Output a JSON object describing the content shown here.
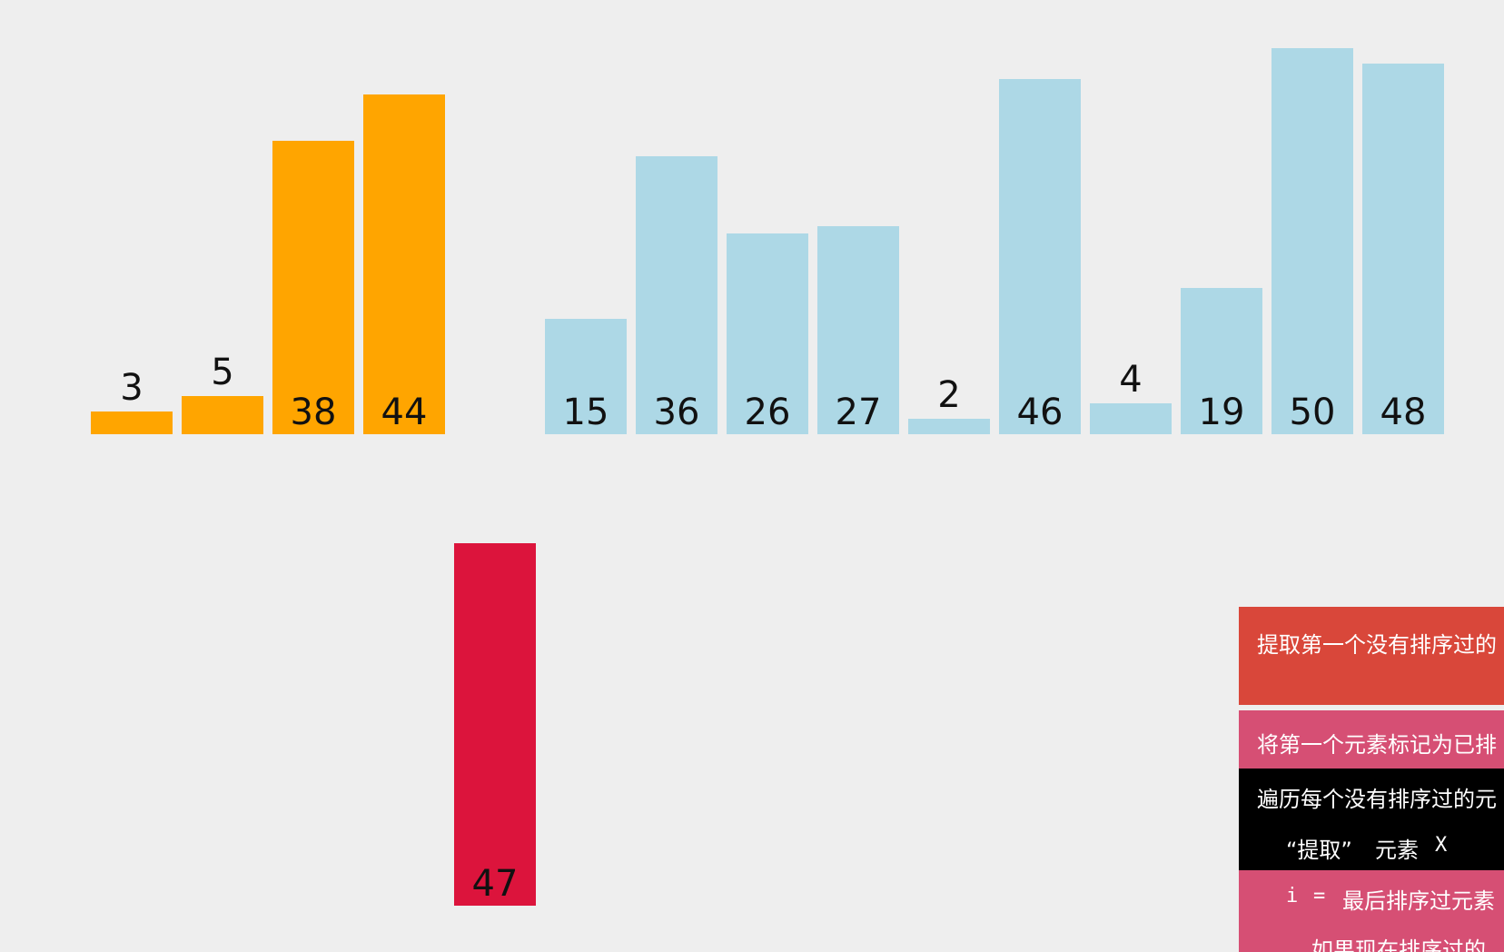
{
  "colors": {
    "background": "#eeeeee",
    "sorted": "#ffa500",
    "unsorted": "#add8e6",
    "current": "#dc143c"
  },
  "visualization": {
    "sorted_bars": [
      3,
      5,
      38,
      44
    ],
    "unsorted_bars": [
      15,
      36,
      26,
      27,
      2,
      46,
      4,
      19,
      50,
      48
    ],
    "extracted_bar": 47
  },
  "code_panel": {
    "line1": "提取第一个没有排序过的",
    "line2": "将第一个元素标记为已排",
    "line3": "遍历每个没有排序过的元",
    "line4_quote": "“提取”",
    "line4_text": "元素",
    "line4_var": "X",
    "line5_var": "i",
    "line5_eq": "=",
    "line5_text": "最后排序过元素",
    "line6": "如果现在排序过的"
  }
}
